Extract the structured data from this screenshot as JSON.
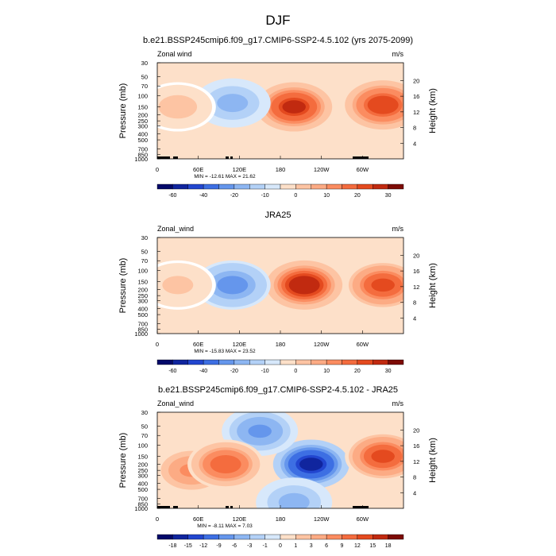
{
  "figure_title": "DJF",
  "colors": {
    "positive": [
      "#fde0c9",
      "#fdc4a3",
      "#fcab84",
      "#fb8c60",
      "#f46c3e",
      "#e44a1f",
      "#c12a10",
      "#7d0b05"
    ],
    "negative": [
      "#d7e8fb",
      "#b3d1f7",
      "#8db6f2",
      "#6596ec",
      "#3d6fe3",
      "#2246cf",
      "#10259e",
      "#03096a"
    ]
  },
  "chart_data": [
    {
      "type": "contour",
      "title": "b.e21.BSSP245cmip6.f09_g17.CMIP6-SSP2-4.5.102 (yrs 2075-2099)",
      "field_label": "Zonal wind",
      "units": "m/s",
      "ylabel": "Pressure (mb)",
      "ylabel_right": "Height (km)",
      "y_scale": "log",
      "ylim": [
        1000,
        30
      ],
      "xlim": [
        0,
        360
      ],
      "x_ticks": [
        "0",
        "60E",
        "120E",
        "180",
        "120W",
        "60W"
      ],
      "y_ticks": [
        "30",
        "50",
        "70",
        "100",
        "150",
        "200",
        "250",
        "300",
        "400",
        "500",
        "700",
        "850",
        "1000"
      ],
      "y_right_ticks": [
        "4",
        "8",
        "12",
        "16",
        "20"
      ],
      "stats": "MIN = -12.61  MAX =  21.62",
      "min": -12.61,
      "max": 21.62,
      "colorbar_levels": [
        "-60",
        "-40",
        "-20",
        "-10",
        "0",
        "10",
        "20",
        "30"
      ],
      "features": [
        {
          "lon": 200,
          "p": 150,
          "value": 21
        },
        {
          "lon": 330,
          "p": 140,
          "value": 20
        },
        {
          "lon": 110,
          "p": 130,
          "value": -8
        },
        {
          "lon": 30,
          "p": 150,
          "value": 5
        }
      ]
    },
    {
      "type": "contour",
      "title": "JRA25",
      "field_label": "Zonal_wind",
      "units": "m/s",
      "ylabel": "Pressure (mb)",
      "ylabel_right": "Height (km)",
      "y_scale": "log",
      "ylim": [
        1000,
        30
      ],
      "xlim": [
        0,
        360
      ],
      "x_ticks": [
        "0",
        "60E",
        "120E",
        "180",
        "120W",
        "60W"
      ],
      "y_ticks": [
        "30",
        "50",
        "70",
        "100",
        "150",
        "200",
        "250",
        "300",
        "400",
        "500",
        "700",
        "850",
        "1000"
      ],
      "y_right_ticks": [
        "4",
        "8",
        "12",
        "16",
        "20"
      ],
      "stats": "MIN = -15.83  MAX =  23.52",
      "min": -15.83,
      "max": 23.52,
      "colorbar_levels": [
        "-60",
        "-40",
        "-20",
        "-10",
        "0",
        "10",
        "20",
        "30"
      ],
      "features": [
        {
          "lon": 215,
          "p": 170,
          "value": 23
        },
        {
          "lon": 330,
          "p": 170,
          "value": 18
        },
        {
          "lon": 110,
          "p": 170,
          "value": -12
        },
        {
          "lon": 30,
          "p": 170,
          "value": 4
        }
      ]
    },
    {
      "type": "contour",
      "title": "b.e21.BSSP245cmip6.f09_g17.CMIP6-SSP2-4.5.102 - JRA25",
      "field_label": "Zonal_wind",
      "units": "m/s",
      "ylabel": "Pressure (mb)",
      "ylabel_right": "Height (km)",
      "y_scale": "log",
      "ylim": [
        1000,
        30
      ],
      "xlim": [
        0,
        360
      ],
      "x_ticks": [
        "0",
        "60E",
        "120E",
        "180",
        "120W",
        "60W"
      ],
      "y_ticks": [
        "30",
        "50",
        "70",
        "100",
        "150",
        "200",
        "250",
        "300",
        "400",
        "500",
        "700",
        "850",
        "1000"
      ],
      "y_right_ticks": [
        "4",
        "8",
        "12",
        "16",
        "20"
      ],
      "stats": "MIN =  -8.11  MAX =   7.03",
      "min": -8.11,
      "max": 7.03,
      "colorbar_levels": [
        "-18",
        "-15",
        "-12",
        "-9",
        "-6",
        "-3",
        "-1",
        "0",
        "1",
        "3",
        "6",
        "9",
        "12",
        "15",
        "18"
      ],
      "features": [
        {
          "lon": 225,
          "p": 200,
          "value": -8
        },
        {
          "lon": 150,
          "p": 60,
          "value": -4
        },
        {
          "lon": 50,
          "p": 250,
          "value": 4
        },
        {
          "lon": 100,
          "p": 200,
          "value": 6
        },
        {
          "lon": 330,
          "p": 150,
          "value": 7
        },
        {
          "lon": 200,
          "p": 800,
          "value": -3
        }
      ]
    }
  ]
}
